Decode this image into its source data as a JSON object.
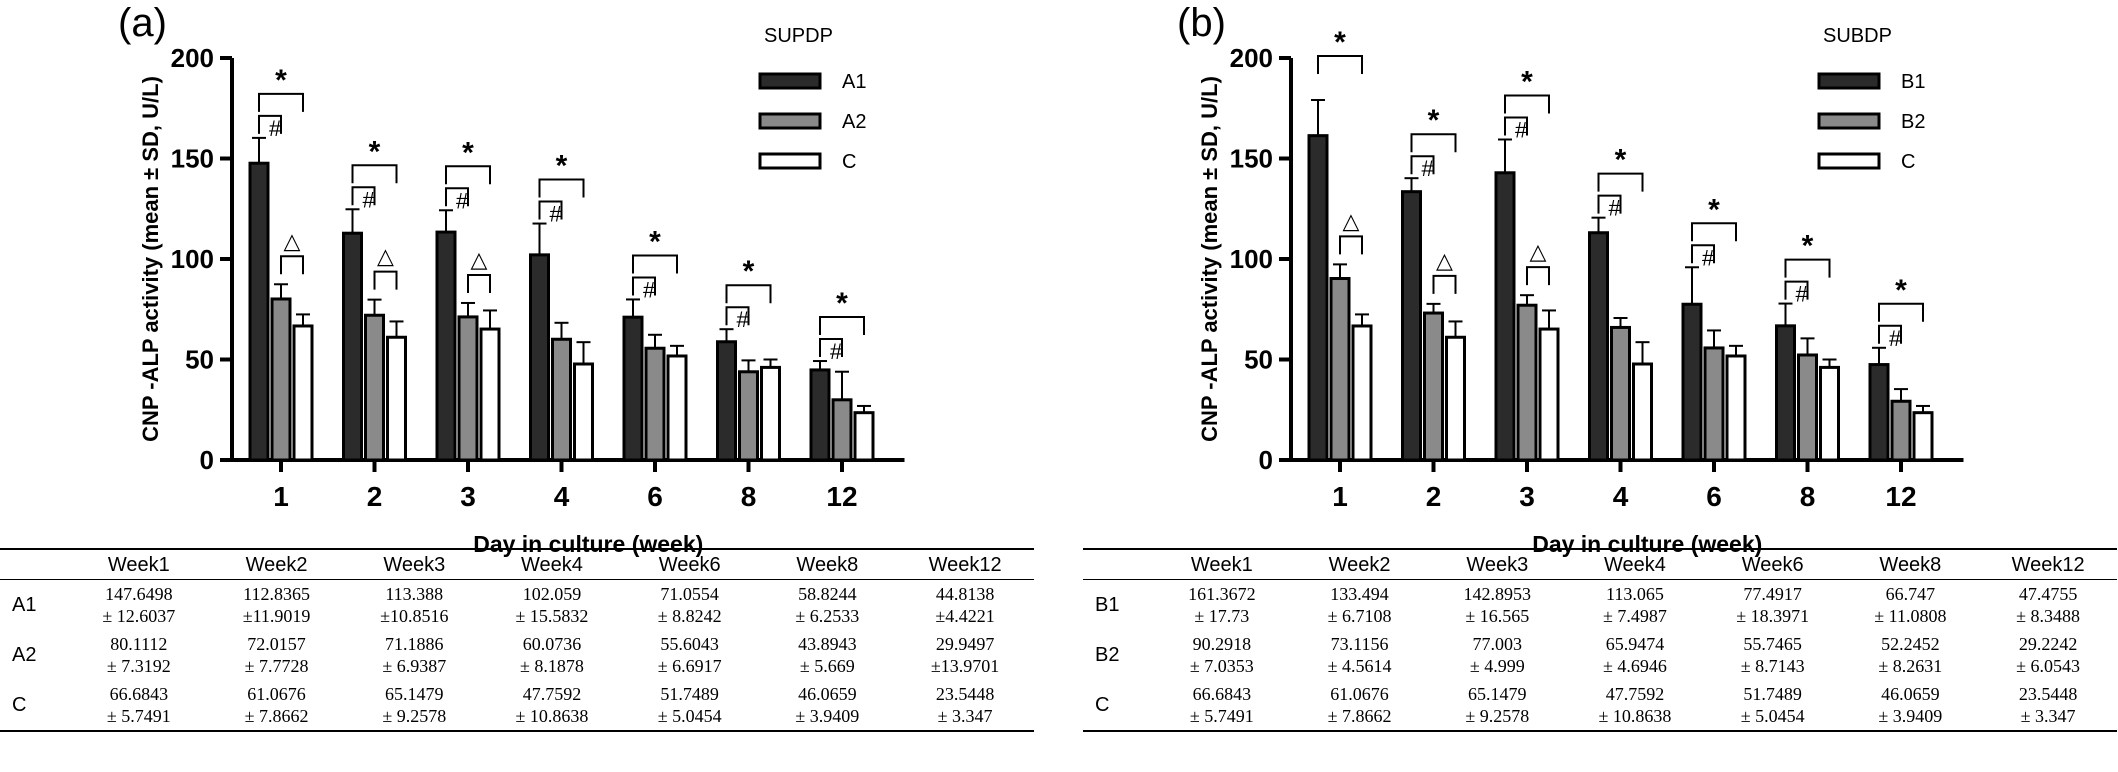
{
  "chart_data": [
    {
      "type": "bar",
      "panel_label": "(a)",
      "legend_title": "SUPDP",
      "categories": [
        "1",
        "2",
        "3",
        "4",
        "6",
        "8",
        "12"
      ],
      "xlabel": "Day in culture (week)",
      "ylabel": "CNP -ALP activity (mean ± SD, U/L)",
      "ylim": [
        0,
        200
      ],
      "yticks": [
        "0",
        "50",
        "100",
        "150",
        "200"
      ],
      "legend_position": "top-right",
      "series": [
        {
          "name": "A1",
          "color": "#2b2b2b",
          "values": [
            147.6498,
            112.8365,
            113.388,
            102.059,
            71.0554,
            58.8244,
            44.8138
          ],
          "sd": [
            12.6037,
            11.9019,
            10.8516,
            15.5832,
            8.8242,
            6.2533,
            4.4221
          ]
        },
        {
          "name": "A2",
          "color": "#8a8a8a",
          "values": [
            80.1112,
            72.0157,
            71.1886,
            60.0736,
            55.6043,
            43.8943,
            29.9497
          ],
          "sd": [
            7.3192,
            7.7728,
            6.9387,
            8.1878,
            6.6917,
            5.669,
            13.9701
          ]
        },
        {
          "name": "C",
          "color": "#ffffff",
          "values": [
            66.6843,
            61.0676,
            65.1479,
            47.7592,
            51.7489,
            46.0659,
            23.5448
          ],
          "sd": [
            5.7491,
            7.8662,
            9.2578,
            10.8638,
            5.0454,
            3.9409,
            3.347
          ]
        }
      ],
      "annotations": {
        "star": "*",
        "hash": "#",
        "triangle": "△",
        "brackets": [
          {
            "group": 0,
            "from": 0,
            "to": 2,
            "mark": "*"
          },
          {
            "group": 0,
            "from": 0,
            "to": 1,
            "mark": "#"
          },
          {
            "group": 0,
            "from": 1,
            "to": 2,
            "mark": "△"
          },
          {
            "group": 1,
            "from": 0,
            "to": 2,
            "mark": "*"
          },
          {
            "group": 1,
            "from": 0,
            "to": 1,
            "mark": "#"
          },
          {
            "group": 1,
            "from": 1,
            "to": 2,
            "mark": "△"
          },
          {
            "group": 2,
            "from": 0,
            "to": 2,
            "mark": "*"
          },
          {
            "group": 2,
            "from": 0,
            "to": 1,
            "mark": "#"
          },
          {
            "group": 2,
            "from": 1,
            "to": 2,
            "mark": "△"
          },
          {
            "group": 3,
            "from": 0,
            "to": 2,
            "mark": "*"
          },
          {
            "group": 3,
            "from": 0,
            "to": 1,
            "mark": "#"
          },
          {
            "group": 4,
            "from": 0,
            "to": 2,
            "mark": "*"
          },
          {
            "group": 4,
            "from": 0,
            "to": 1,
            "mark": "#"
          },
          {
            "group": 5,
            "from": 0,
            "to": 2,
            "mark": "*"
          },
          {
            "group": 5,
            "from": 0,
            "to": 1,
            "mark": "#"
          },
          {
            "group": 6,
            "from": 0,
            "to": 2,
            "mark": "*"
          },
          {
            "group": 6,
            "from": 0,
            "to": 1,
            "mark": "#"
          }
        ]
      }
    },
    {
      "type": "bar",
      "panel_label": "(b)",
      "legend_title": "SUBDP",
      "categories": [
        "1",
        "2",
        "3",
        "4",
        "6",
        "8",
        "12"
      ],
      "xlabel": "Day in culture (week)",
      "ylabel": "CNP -ALP activity (mean ± SD, U/L)",
      "ylim": [
        0,
        200
      ],
      "yticks": [
        "0",
        "50",
        "100",
        "150",
        "200"
      ],
      "legend_position": "top-right",
      "series": [
        {
          "name": "B1",
          "color": "#2b2b2b",
          "values": [
            161.3672,
            133.494,
            142.8953,
            113.065,
            77.4917,
            66.747,
            47.4755
          ],
          "sd": [
            17.73,
            6.7108,
            16.565,
            7.4987,
            18.3971,
            11.0808,
            8.3488
          ]
        },
        {
          "name": "B2",
          "color": "#8a8a8a",
          "values": [
            90.2918,
            73.1156,
            77.003,
            65.9474,
            55.7465,
            52.2452,
            29.2242
          ],
          "sd": [
            7.0353,
            4.5614,
            4.999,
            4.6946,
            8.7143,
            8.2631,
            6.0543
          ]
        },
        {
          "name": "C",
          "color": "#ffffff",
          "values": [
            66.6843,
            61.0676,
            65.1479,
            47.7592,
            51.7489,
            46.0659,
            23.5448
          ],
          "sd": [
            5.7491,
            7.8662,
            9.2578,
            10.8638,
            5.0454,
            3.9409,
            3.347
          ]
        }
      ],
      "annotations": {
        "star": "*",
        "hash": "#",
        "triangle": "△",
        "brackets": [
          {
            "group": 0,
            "from": 0,
            "to": 2,
            "mark": "*"
          },
          {
            "group": 0,
            "from": 1,
            "to": 2,
            "mark": "△"
          },
          {
            "group": 1,
            "from": 0,
            "to": 2,
            "mark": "*"
          },
          {
            "group": 1,
            "from": 0,
            "to": 1,
            "mark": "#"
          },
          {
            "group": 1,
            "from": 1,
            "to": 2,
            "mark": "△"
          },
          {
            "group": 2,
            "from": 0,
            "to": 2,
            "mark": "*"
          },
          {
            "group": 2,
            "from": 0,
            "to": 1,
            "mark": "#"
          },
          {
            "group": 2,
            "from": 1,
            "to": 2,
            "mark": "△"
          },
          {
            "group": 3,
            "from": 0,
            "to": 2,
            "mark": "*"
          },
          {
            "group": 3,
            "from": 0,
            "to": 1,
            "mark": "#"
          },
          {
            "group": 4,
            "from": 0,
            "to": 2,
            "mark": "*"
          },
          {
            "group": 4,
            "from": 0,
            "to": 1,
            "mark": "#"
          },
          {
            "group": 5,
            "from": 0,
            "to": 2,
            "mark": "*"
          },
          {
            "group": 5,
            "from": 0,
            "to": 1,
            "mark": "#"
          },
          {
            "group": 6,
            "from": 0,
            "to": 2,
            "mark": "*"
          },
          {
            "group": 6,
            "from": 0,
            "to": 1,
            "mark": "#"
          }
        ]
      }
    }
  ],
  "tables": [
    {
      "headers": [
        "",
        "Week1",
        "Week2",
        "Week3",
        "Week4",
        "Week6",
        "Week8",
        "Week12"
      ],
      "rows": [
        {
          "label": "A1",
          "cells": [
            [
              "147.6498",
              "± 12.6037"
            ],
            [
              "112.8365",
              "±11.9019"
            ],
            [
              "113.388",
              "±10.8516"
            ],
            [
              "102.059",
              "± 15.5832"
            ],
            [
              "71.0554",
              "± 8.8242"
            ],
            [
              "58.8244",
              "± 6.2533"
            ],
            [
              "44.8138",
              "±4.4221"
            ]
          ]
        },
        {
          "label": "A2",
          "cells": [
            [
              "80.1112",
              "± 7.3192"
            ],
            [
              "72.0157",
              "± 7.7728"
            ],
            [
              "71.1886",
              "± 6.9387"
            ],
            [
              "60.0736",
              "± 8.1878"
            ],
            [
              "55.6043",
              "± 6.6917"
            ],
            [
              "43.8943",
              "± 5.669"
            ],
            [
              "29.9497",
              "±13.9701"
            ]
          ]
        },
        {
          "label": "C",
          "cells": [
            [
              "66.6843",
              "± 5.7491"
            ],
            [
              "61.0676",
              "± 7.8662"
            ],
            [
              "65.1479",
              "± 9.2578"
            ],
            [
              "47.7592",
              "± 10.8638"
            ],
            [
              "51.7489",
              "± 5.0454"
            ],
            [
              "46.0659",
              "± 3.9409"
            ],
            [
              "23.5448",
              "± 3.347"
            ]
          ]
        }
      ]
    },
    {
      "headers": [
        "",
        "Week1",
        "Week2",
        "Week3",
        "Week4",
        "Week6",
        "Week8",
        "Week12"
      ],
      "rows": [
        {
          "label": "B1",
          "cells": [
            [
              "161.3672",
              "± 17.73"
            ],
            [
              "133.494",
              "± 6.7108"
            ],
            [
              "142.8953",
              "± 16.565"
            ],
            [
              "113.065",
              "± 7.4987"
            ],
            [
              "77.4917",
              "± 18.3971"
            ],
            [
              "66.747",
              "± 11.0808"
            ],
            [
              "47.4755",
              "± 8.3488"
            ]
          ]
        },
        {
          "label": "B2",
          "cells": [
            [
              "90.2918",
              "± 7.0353"
            ],
            [
              "73.1156",
              "± 4.5614"
            ],
            [
              "77.003",
              "± 4.999"
            ],
            [
              "65.9474",
              "± 4.6946"
            ],
            [
              "55.7465",
              "± 8.7143"
            ],
            [
              "52.2452",
              "± 8.2631"
            ],
            [
              "29.2242",
              "± 6.0543"
            ]
          ]
        },
        {
          "label": "C",
          "cells": [
            [
              "66.6843",
              "± 5.7491"
            ],
            [
              "61.0676",
              "± 7.8662"
            ],
            [
              "65.1479",
              "± 9.2578"
            ],
            [
              "47.7592",
              "± 10.8638"
            ],
            [
              "51.7489",
              "± 5.0454"
            ],
            [
              "46.0659",
              "± 3.9409"
            ],
            [
              "23.5448",
              "± 3.347"
            ]
          ]
        }
      ]
    }
  ]
}
